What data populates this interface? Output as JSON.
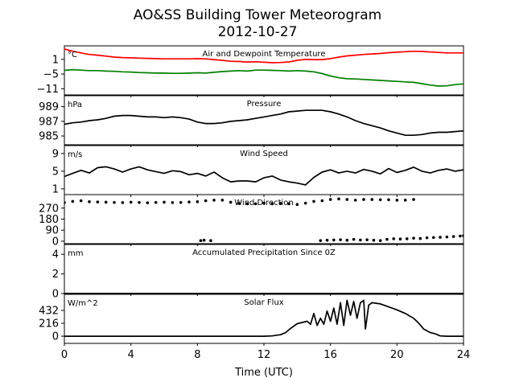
{
  "figure": {
    "title_line1": "AO&SS Building Tower Meteorogram",
    "title_line2": "2012-10-27",
    "xlabel": "Time (UTC)"
  },
  "chart_data": [
    {
      "type": "line",
      "title": "Air and Dewpoint Temperature",
      "unit_label": "°C",
      "ylim": [
        -13.5,
        6.5
      ],
      "yticks": [
        1,
        -5,
        -11
      ],
      "xlim": [
        0,
        24
      ],
      "series": [
        {
          "color": "#ff0000",
          "x": [
            0,
            0.5,
            1,
            1.5,
            2,
            2.5,
            3,
            3.5,
            4,
            4.5,
            5,
            5.5,
            6,
            6.5,
            7,
            7.5,
            8,
            8.5,
            9,
            9.5,
            10,
            10.5,
            11,
            11.5,
            12,
            12.5,
            13,
            13.5,
            14,
            14.5,
            15,
            15.5,
            16,
            16.5,
            17,
            17.5,
            18,
            18.5,
            19,
            19.5,
            20,
            20.5,
            21,
            21.5,
            22,
            22.5,
            23,
            23.5,
            24
          ],
          "y": [
            5.2,
            4.3,
            3.6,
            3.0,
            2.7,
            2.3,
            1.9,
            1.7,
            1.6,
            1.5,
            1.4,
            1.3,
            1.2,
            1.2,
            1.2,
            1.2,
            1.3,
            1.2,
            0.9,
            0.6,
            0.2,
            0.1,
            -0.1,
            0.0,
            -0.2,
            -0.4,
            -0.3,
            -0.1,
            0.6,
            1.0,
            0.9,
            0.9,
            1.3,
            1.9,
            2.4,
            2.7,
            3.0,
            3.2,
            3.4,
            3.7,
            3.9,
            4.1,
            4.3,
            4.2,
            4.0,
            3.8,
            3.6,
            3.6,
            3.6
          ]
        },
        {
          "color": "#008000",
          "x": [
            0,
            0.5,
            1,
            1.5,
            2,
            2.5,
            3,
            3.5,
            4,
            4.5,
            5,
            5.5,
            6,
            6.5,
            7,
            7.5,
            8,
            8.5,
            9,
            9.5,
            10,
            10.5,
            11,
            11.5,
            12,
            12.5,
            13,
            13.5,
            14,
            14.5,
            15,
            15.5,
            16,
            16.5,
            17,
            17.5,
            18,
            18.5,
            19,
            19.5,
            20,
            20.5,
            21,
            21.5,
            22,
            22.5,
            23,
            23.5,
            24
          ],
          "y": [
            -3.5,
            -3.2,
            -3.4,
            -3.6,
            -3.6,
            -3.8,
            -3.9,
            -4.1,
            -4.2,
            -4.4,
            -4.5,
            -4.6,
            -4.6,
            -4.7,
            -4.7,
            -4.6,
            -4.5,
            -4.6,
            -4.3,
            -4.0,
            -3.8,
            -3.6,
            -3.8,
            -3.4,
            -3.4,
            -3.5,
            -3.6,
            -3.8,
            -3.6,
            -3.8,
            -4.1,
            -4.8,
            -5.8,
            -6.5,
            -6.9,
            -7.0,
            -7.2,
            -7.4,
            -7.6,
            -7.8,
            -8.0,
            -8.2,
            -8.4,
            -8.9,
            -9.5,
            -9.9,
            -9.8,
            -9.3,
            -9.0
          ]
        }
      ]
    },
    {
      "type": "line",
      "title": "Pressure",
      "unit_label": "hPa",
      "ylim": [
        983.8,
        990.5
      ],
      "yticks": [
        989,
        987,
        985
      ],
      "xlim": [
        0,
        24
      ],
      "series": [
        {
          "color": "#000000",
          "x": [
            0,
            0.5,
            1,
            1.5,
            2,
            2.5,
            3,
            3.5,
            4,
            4.5,
            5,
            5.5,
            6,
            6.5,
            7,
            7.5,
            8,
            8.5,
            9,
            9.5,
            10,
            10.5,
            11,
            11.5,
            12,
            12.5,
            13,
            13.5,
            14,
            14.5,
            15,
            15.5,
            16,
            16.5,
            17,
            17.5,
            18,
            18.5,
            19,
            19.5,
            20,
            20.5,
            21,
            21.5,
            22,
            22.5,
            23,
            23.5,
            24
          ],
          "y": [
            986.6,
            986.8,
            986.9,
            987.1,
            987.2,
            987.4,
            987.7,
            987.8,
            987.8,
            987.7,
            987.6,
            987.6,
            987.5,
            987.6,
            987.5,
            987.3,
            986.9,
            986.7,
            986.7,
            986.8,
            987.0,
            987.1,
            987.2,
            987.4,
            987.6,
            987.8,
            988.0,
            988.3,
            988.4,
            988.5,
            988.5,
            988.5,
            988.3,
            988.0,
            987.6,
            987.1,
            986.7,
            986.4,
            986.1,
            985.7,
            985.4,
            985.1,
            985.1,
            985.2,
            985.4,
            985.5,
            985.5,
            985.6,
            985.7
          ]
        }
      ]
    },
    {
      "type": "line",
      "title": "Wind Speed",
      "unit_label": "m/s",
      "ylim": [
        -0.3,
        10.8
      ],
      "yticks": [
        9,
        5,
        1
      ],
      "xlim": [
        0,
        24
      ],
      "series": [
        {
          "color": "#000000",
          "x": [
            0,
            0.5,
            1,
            1.5,
            2,
            2.5,
            3,
            3.5,
            4,
            4.5,
            5,
            5.5,
            6,
            6.5,
            7,
            7.5,
            8,
            8.5,
            9,
            9.5,
            10,
            10.5,
            11,
            11.5,
            12,
            12.5,
            13,
            13.5,
            14,
            14.5,
            15,
            15.5,
            16,
            16.5,
            17,
            17.5,
            18,
            18.5,
            19,
            19.5,
            20,
            20.5,
            21,
            21.5,
            22,
            22.5,
            23,
            23.5,
            24
          ],
          "y": [
            3.8,
            4.5,
            5.2,
            4.6,
            5.8,
            6.0,
            5.5,
            4.8,
            5.5,
            6.0,
            5.3,
            4.9,
            4.5,
            5.1,
            4.9,
            4.2,
            4.5,
            3.9,
            4.8,
            3.5,
            2.6,
            2.8,
            2.8,
            2.6,
            3.5,
            3.9,
            3.0,
            2.6,
            2.3,
            1.9,
            3.6,
            4.8,
            5.3,
            4.6,
            5.0,
            4.6,
            5.4,
            5.0,
            4.4,
            5.6,
            4.7,
            5.2,
            5.9,
            5.0,
            4.6,
            5.2,
            5.5,
            5.0,
            5.3
          ]
        }
      ]
    },
    {
      "type": "scatter",
      "title": "Wind Direction",
      "unit_label": "",
      "ylim": [
        -20,
        380
      ],
      "yticks": [
        270,
        180,
        90,
        0
      ],
      "xlim": [
        0,
        24
      ],
      "series": [
        {
          "color": "#000000",
          "x": [
            0,
            0.5,
            1,
            1.5,
            2,
            2.5,
            3,
            3.5,
            4,
            4.5,
            5,
            5.5,
            6,
            6.5,
            7,
            7.5,
            8,
            8.5,
            9,
            9.5,
            10,
            10.5,
            11,
            11.5,
            12,
            12.5,
            13,
            13.5,
            14,
            14.5,
            15,
            15.5,
            16,
            16.5,
            17,
            17.5,
            18,
            18.5,
            19,
            19.5,
            20,
            20.5,
            21,
            8.2,
            8.4,
            8.8,
            15.4,
            15.8,
            16.2,
            16.6,
            17.0,
            17.4,
            17.8,
            18.2,
            18.6,
            19.0,
            19.4,
            19.8,
            20.2,
            20.6,
            21.0,
            21.4,
            21.8,
            22.2,
            22.6,
            23.0,
            23.4,
            23.8,
            24
          ],
          "y": [
            315,
            325,
            330,
            322,
            320,
            318,
            316,
            315,
            318,
            316,
            313,
            316,
            318,
            315,
            316,
            320,
            322,
            330,
            335,
            335,
            318,
            308,
            305,
            305,
            310,
            305,
            308,
            305,
            300,
            310,
            325,
            330,
            340,
            345,
            340,
            335,
            340,
            340,
            338,
            338,
            335,
            335,
            340,
            5,
            8,
            5,
            5,
            8,
            10,
            12,
            8,
            15,
            10,
            12,
            8,
            5,
            15,
            20,
            18,
            20,
            25,
            22,
            28,
            30,
            32,
            35,
            38,
            42,
            45
          ]
        }
      ]
    },
    {
      "type": "line",
      "title": "Accumulated Precipitation Since 0Z",
      "unit_label": "mm",
      "ylim": [
        0,
        5
      ],
      "yticks": [
        4,
        2,
        0
      ],
      "xlim": [
        0,
        24
      ],
      "series": [
        {
          "color": "#000000",
          "x": [
            0,
            24
          ],
          "y": [
            0,
            0
          ]
        }
      ]
    },
    {
      "type": "line",
      "title": "Solar Flux",
      "unit_label": "W/m^2",
      "ylim": [
        -120,
        700
      ],
      "yticks": [
        432,
        216,
        0
      ],
      "xlim": [
        0,
        24
      ],
      "series": [
        {
          "color": "#000000",
          "x": [
            0,
            6,
            12,
            12.5,
            13,
            13.3,
            13.6,
            14.0,
            14.3,
            14.6,
            14.8,
            15.0,
            15.2,
            15.4,
            15.6,
            15.8,
            16.0,
            16.2,
            16.4,
            16.6,
            16.8,
            17.0,
            17.2,
            17.4,
            17.6,
            17.8,
            18.0,
            18.1,
            18.3,
            18.5,
            19,
            19.5,
            20,
            20.5,
            21,
            21.3,
            21.6,
            22,
            22.3,
            22.6,
            23,
            24
          ],
          "y": [
            0,
            0,
            0,
            5,
            25,
            60,
            130,
            210,
            230,
            250,
            200,
            380,
            180,
            300,
            200,
            420,
            250,
            470,
            200,
            560,
            180,
            600,
            350,
            580,
            300,
            560,
            600,
            120,
            520,
            560,
            540,
            490,
            440,
            380,
            300,
            220,
            120,
            60,
            40,
            5,
            0,
            0
          ]
        }
      ]
    }
  ]
}
